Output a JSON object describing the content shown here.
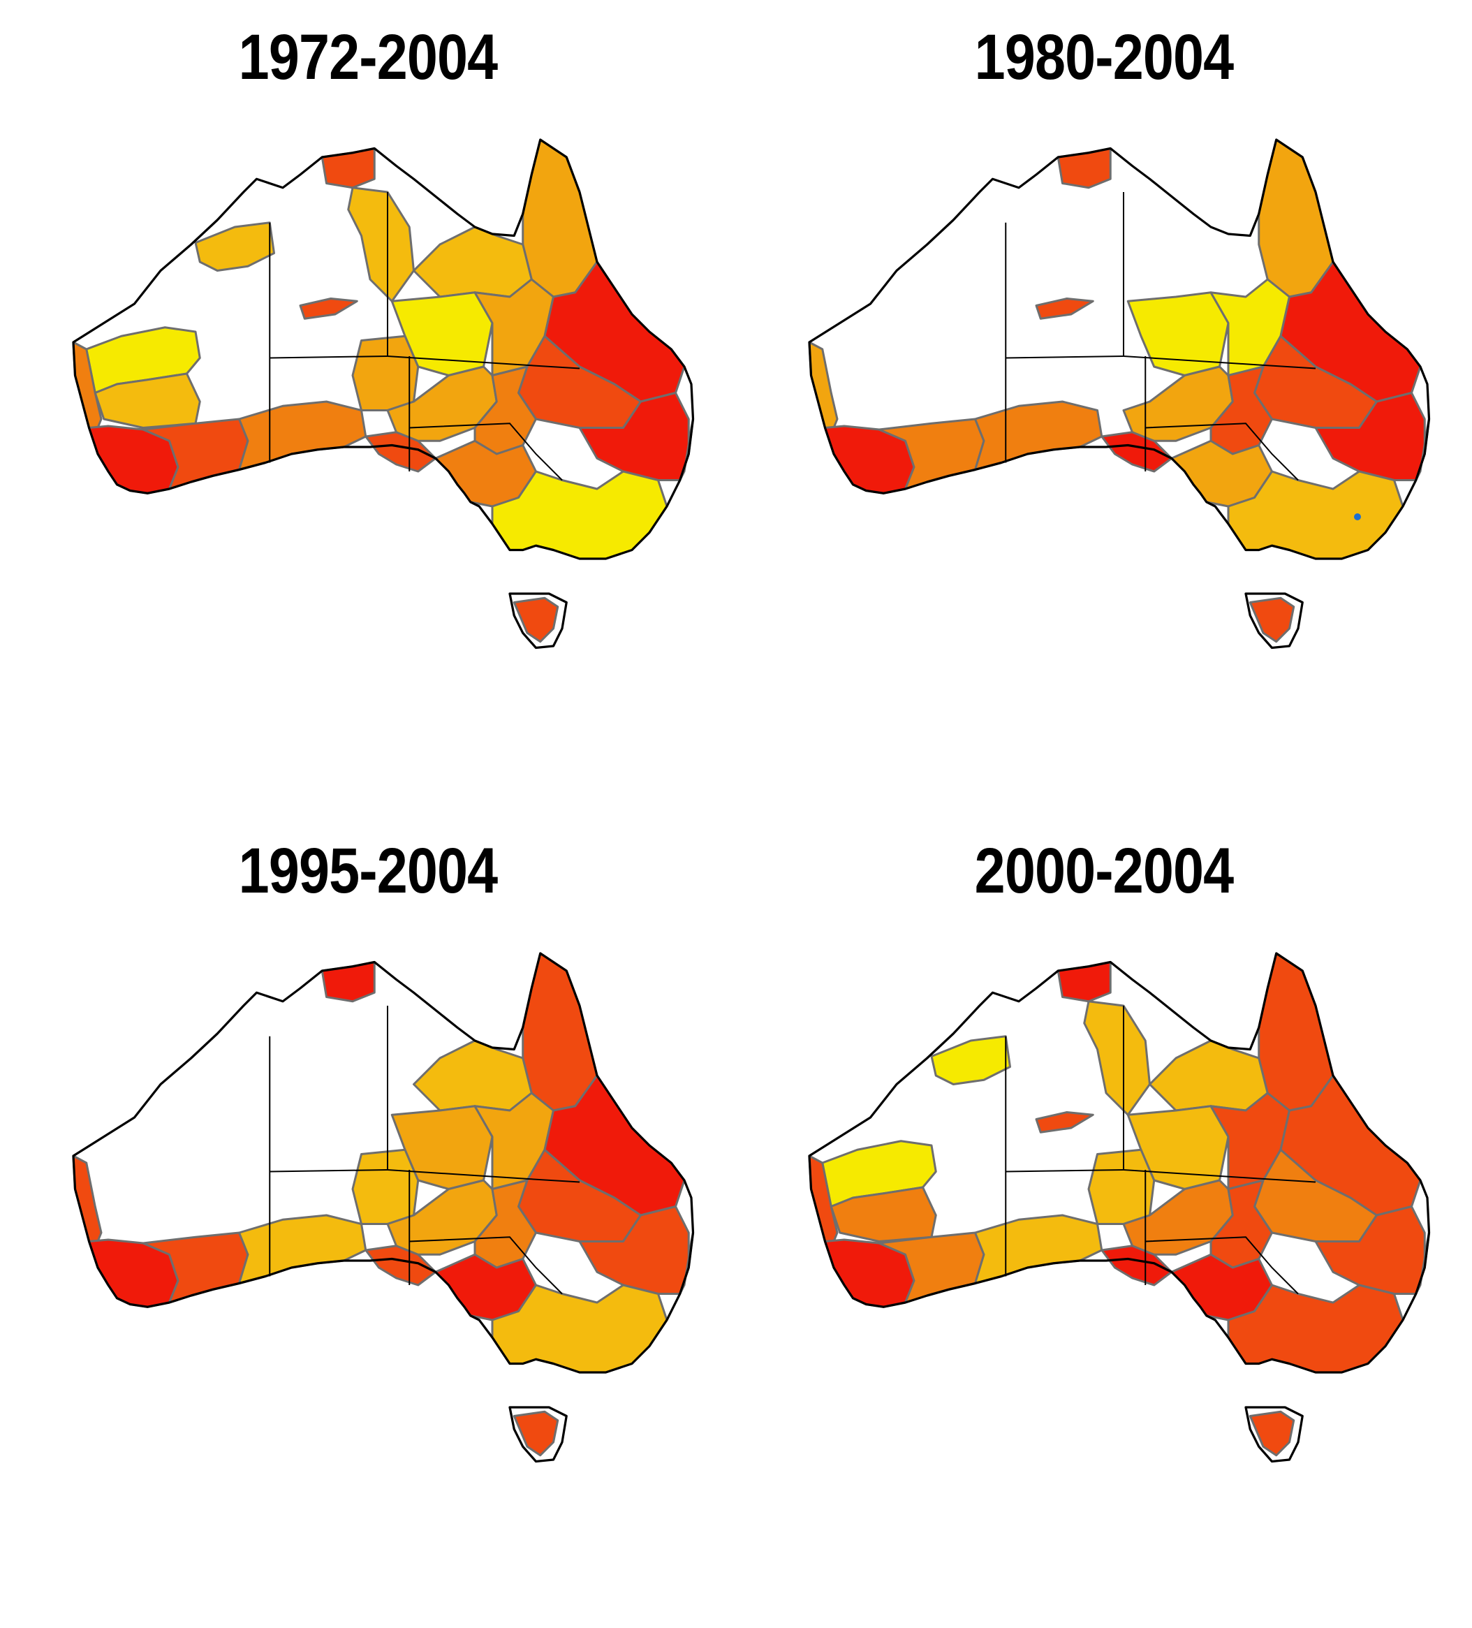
{
  "colors": {
    "yellow": "#f6ea00",
    "gold": "#f4bb0e",
    "amber": "#f2a50f",
    "orange": "#f07f10",
    "red_orange": "#f04a10",
    "red": "#f01a0a",
    "blue_patch": "#1f6fd0"
  },
  "panels": [
    {
      "title": "1972-2004",
      "fills": {
        "wa_northwest": "yellow",
        "wa_west_coast": "orange",
        "wa_goldfields": "gold",
        "wa_southwest": "red",
        "wa_south_coast": "red_orange",
        "kimberley": "gold",
        "nt_topend": "red_orange",
        "nt_gulf": "gold",
        "nt_central_strip": "red_orange",
        "qld_capeyork": "amber",
        "qld_gulf": "gold",
        "qld_west": "yellow",
        "qld_central": "amber",
        "qld_east": "red",
        "qld_southeast": "red_orange",
        "sa_nullarbor": "orange",
        "sa_north": "amber",
        "sa_gulfs": "red_orange",
        "nsw_west": "amber",
        "nsw_central": "orange",
        "nsw_northeast": "red",
        "vic_north": "orange",
        "vic_south": "yellow",
        "east_coast_strip": "yellow",
        "tasmania": "red_orange"
      }
    },
    {
      "title": "1980-2004",
      "fills": {
        "wa_northwest": "none",
        "wa_west_coast": "amber",
        "wa_goldfields": "none",
        "wa_southwest": "red",
        "wa_south_coast": "orange",
        "kimberley": "none",
        "nt_topend": "red_orange",
        "nt_gulf": "none",
        "nt_central_strip": "red_orange",
        "qld_capeyork": "amber",
        "qld_gulf": "none",
        "qld_west": "yellow",
        "qld_central": "yellow",
        "qld_east": "red",
        "qld_southeast": "red_orange",
        "sa_nullarbor": "orange",
        "sa_north": "none",
        "sa_gulfs": "red",
        "nsw_west": "amber",
        "nsw_central": "red_orange",
        "nsw_northeast": "red",
        "vic_north": "amber",
        "vic_south": "gold",
        "east_coast_strip": "amber",
        "tasmania": "red_orange"
      }
    },
    {
      "title": "1995-2004",
      "fills": {
        "wa_northwest": "none",
        "wa_west_coast": "red_orange",
        "wa_goldfields": "none",
        "wa_southwest": "red",
        "wa_south_coast": "red_orange",
        "kimberley": "none",
        "nt_topend": "red",
        "nt_gulf": "none",
        "nt_central_strip": "none",
        "qld_capeyork": "red_orange",
        "qld_gulf": "gold",
        "qld_west": "amber",
        "qld_central": "amber",
        "qld_east": "red",
        "qld_southeast": "red_orange",
        "sa_nullarbor": "gold",
        "sa_north": "gold",
        "sa_gulfs": "red_orange",
        "nsw_west": "amber",
        "nsw_central": "orange",
        "nsw_northeast": "red_orange",
        "vic_north": "red",
        "vic_south": "gold",
        "east_coast_strip": "orange",
        "tasmania": "red_orange"
      }
    },
    {
      "title": "2000-2004",
      "fills": {
        "wa_northwest": "yellow",
        "wa_west_coast": "red_orange",
        "wa_goldfields": "orange",
        "wa_southwest": "red",
        "wa_south_coast": "orange",
        "kimberley": "yellow",
        "nt_topend": "red",
        "nt_gulf": "gold",
        "nt_central_strip": "red_orange",
        "qld_capeyork": "red_orange",
        "qld_gulf": "gold",
        "qld_west": "gold",
        "qld_central": "red_orange",
        "qld_east": "red_orange",
        "qld_southeast": "orange",
        "sa_nullarbor": "gold",
        "sa_north": "gold",
        "sa_gulfs": "red",
        "nsw_west": "orange",
        "nsw_central": "red_orange",
        "nsw_northeast": "red_orange",
        "vic_north": "red",
        "vic_south": "red_orange",
        "east_coast_strip": "amber",
        "tasmania": "red_orange"
      }
    }
  ]
}
